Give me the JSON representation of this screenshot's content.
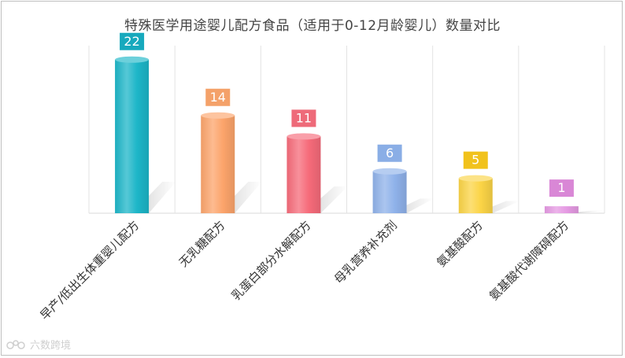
{
  "chart_data": {
    "type": "bar",
    "title": "特殊医学用途婴儿配方食品（适用于0-12月龄婴儿）数量对比",
    "categories": [
      "早产/低出生体重婴儿配方",
      "无乳糖配方",
      "乳蛋白部分水解配方",
      "母乳营养补充剂",
      "氨基酸配方",
      "氨基酸代谢障碍配方"
    ],
    "values": [
      22,
      14,
      11,
      6,
      5,
      1
    ],
    "colors": [
      "#1db6c8",
      "#fca46b",
      "#f66b7a",
      "#8fb2ea",
      "#fbd446",
      "#e59ae3"
    ],
    "label_colors": [
      "#17a9bd",
      "#f4a169",
      "#ee6a79",
      "#8aaee6",
      "#f1c21c",
      "#d987d6"
    ],
    "ylim": [
      0,
      24
    ],
    "grid": "vertical separators"
  },
  "watermark": "六数跨境",
  "watermark_icon": "brand-logo-icon"
}
